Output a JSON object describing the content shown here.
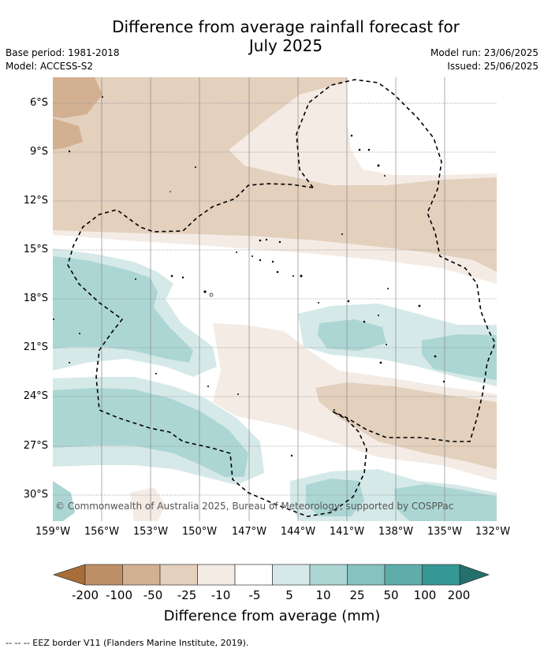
{
  "header": {
    "title_line1": "Difference from average rainfall forecast for",
    "title_line2": "July 2025",
    "base_period": "Base period: 1981-2018",
    "model": "Model: ACCESS-S2",
    "model_run": "Model run: 23/06/2025",
    "issued": "Issued: 25/06/2025"
  },
  "map": {
    "lat_labels": [
      "6°S",
      "9°S",
      "12°S",
      "15°S",
      "18°S",
      "21°S",
      "24°S",
      "27°S",
      "30°S"
    ],
    "lon_labels": [
      "159°W",
      "156°W",
      "153°W",
      "150°W",
      "147°W",
      "144°W",
      "141°W",
      "138°W",
      "135°W",
      "132°W"
    ],
    "copyright": "© Commonwealth of Australia 2025, Bureau of Meteorology, supported by COSPPac"
  },
  "colorbar": {
    "colors": [
      "#a86d38",
      "#bf9068",
      "#d3b092",
      "#e3d0bd",
      "#f4ebe4",
      "#ffffff",
      "#d5e9e8",
      "#acd6d4",
      "#85c2c0",
      "#5eadaa",
      "#359894",
      "#23706d"
    ],
    "tick_labels": [
      "-200",
      "-100",
      "-50",
      "-25",
      "-10",
      "-5",
      "5",
      "10",
      "25",
      "50",
      "100",
      "200"
    ],
    "title": "Difference from average (mm)"
  },
  "footnote": "-- -- -- EEZ border V11 (Flanders Marine Institute, 2019)."
}
